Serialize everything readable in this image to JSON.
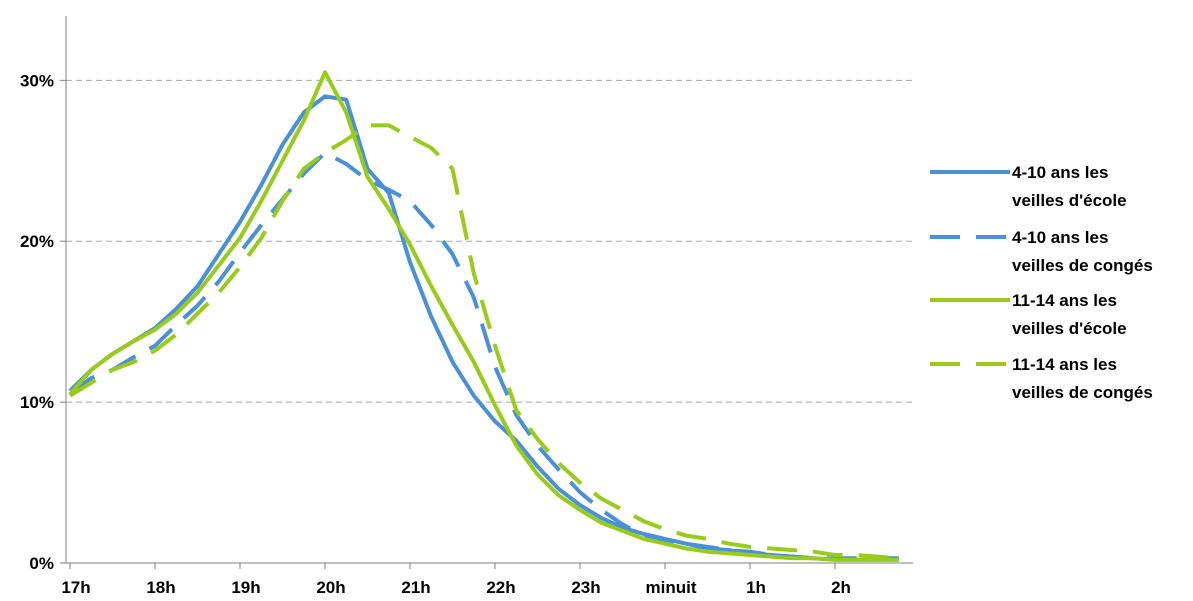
{
  "chart_data": {
    "type": "line",
    "title": "",
    "xlabel": "",
    "ylabel": "",
    "x_tick_labels": [
      "17h",
      "18h",
      "19h",
      "20h",
      "21h",
      "22h",
      "23h",
      "minuit",
      "1h",
      "2h"
    ],
    "y_tick_labels": [
      "0%",
      "10%",
      "20%",
      "30%"
    ],
    "ylim": [
      0,
      34
    ],
    "grid": "horizontal-dashed",
    "legend_position": "right",
    "x": [
      0,
      0.25,
      0.5,
      0.75,
      1,
      1.25,
      1.5,
      1.75,
      2,
      2.25,
      2.5,
      2.75,
      3,
      3.25,
      3.5,
      3.75,
      4,
      4.25,
      4.5,
      4.75,
      5,
      5.25,
      5.5,
      5.75,
      6,
      6.25,
      6.5,
      6.75,
      7,
      7.25,
      7.5,
      7.75,
      8,
      8.25,
      8.5,
      8.75,
      9,
      9.25,
      9.5,
      9.75
    ],
    "series": [
      {
        "name_lines": [
          "4-10 ans les",
          "veilles d'école"
        ],
        "color": "#4a90d9",
        "dash": "solid",
        "values": [
          10.7,
          12.0,
          13.0,
          13.8,
          14.6,
          15.8,
          17.2,
          19.2,
          21.2,
          23.5,
          26.0,
          28.0,
          29.0,
          28.8,
          24.5,
          23.0,
          18.7,
          15.3,
          12.5,
          10.4,
          8.8,
          7.6,
          6.0,
          4.6,
          3.6,
          2.8,
          2.2,
          1.8,
          1.5,
          1.2,
          0.9,
          0.8,
          0.6,
          0.5,
          0.4,
          0.3,
          0.2,
          0.2,
          0.2,
          0.2
        ]
      },
      {
        "name_lines": [
          "4-10 ans les",
          "veilles de congés"
        ],
        "color": "#4a90d9",
        "dash": "dashed",
        "values": [
          10.5,
          11.5,
          12.0,
          12.8,
          13.5,
          14.8,
          16.0,
          17.5,
          19.3,
          21.0,
          22.6,
          24.2,
          25.5,
          24.8,
          23.8,
          23.2,
          22.5,
          21.0,
          19.2,
          16.5,
          12.2,
          9.2,
          7.3,
          5.8,
          4.4,
          3.3,
          2.4,
          1.7,
          1.4,
          1.2,
          1.0,
          0.8,
          0.7,
          0.5,
          0.4,
          0.3,
          0.3,
          0.3,
          0.3,
          0.3
        ]
      },
      {
        "name_lines": [
          "11-14 ans les",
          "veilles d'école"
        ],
        "color": "#99cc1a",
        "dash": "solid",
        "values": [
          10.5,
          12.0,
          13.0,
          13.8,
          14.5,
          15.5,
          16.8,
          18.5,
          20.2,
          22.5,
          25.0,
          27.5,
          30.5,
          28.0,
          24.0,
          22.0,
          19.8,
          17.2,
          14.8,
          12.5,
          9.8,
          7.3,
          5.5,
          4.2,
          3.3,
          2.5,
          2.0,
          1.5,
          1.2,
          0.9,
          0.7,
          0.6,
          0.5,
          0.4,
          0.3,
          0.3,
          0.2,
          0.2,
          0.2,
          0.2
        ]
      },
      {
        "name_lines": [
          "11-14 ans les",
          "veilles de congés"
        ],
        "color": "#99cc1a",
        "dash": "dashed",
        "values": [
          10.4,
          11.2,
          12.0,
          12.5,
          13.2,
          14.2,
          15.5,
          16.8,
          18.4,
          20.2,
          22.5,
          24.5,
          25.5,
          26.3,
          27.2,
          27.2,
          26.5,
          25.8,
          24.5,
          18.0,
          13.5,
          9.5,
          7.7,
          6.2,
          5.0,
          4.0,
          3.3,
          2.6,
          2.1,
          1.7,
          1.5,
          1.2,
          1.0,
          0.9,
          0.8,
          0.7,
          0.5,
          0.5,
          0.4,
          0.3
        ]
      }
    ]
  }
}
